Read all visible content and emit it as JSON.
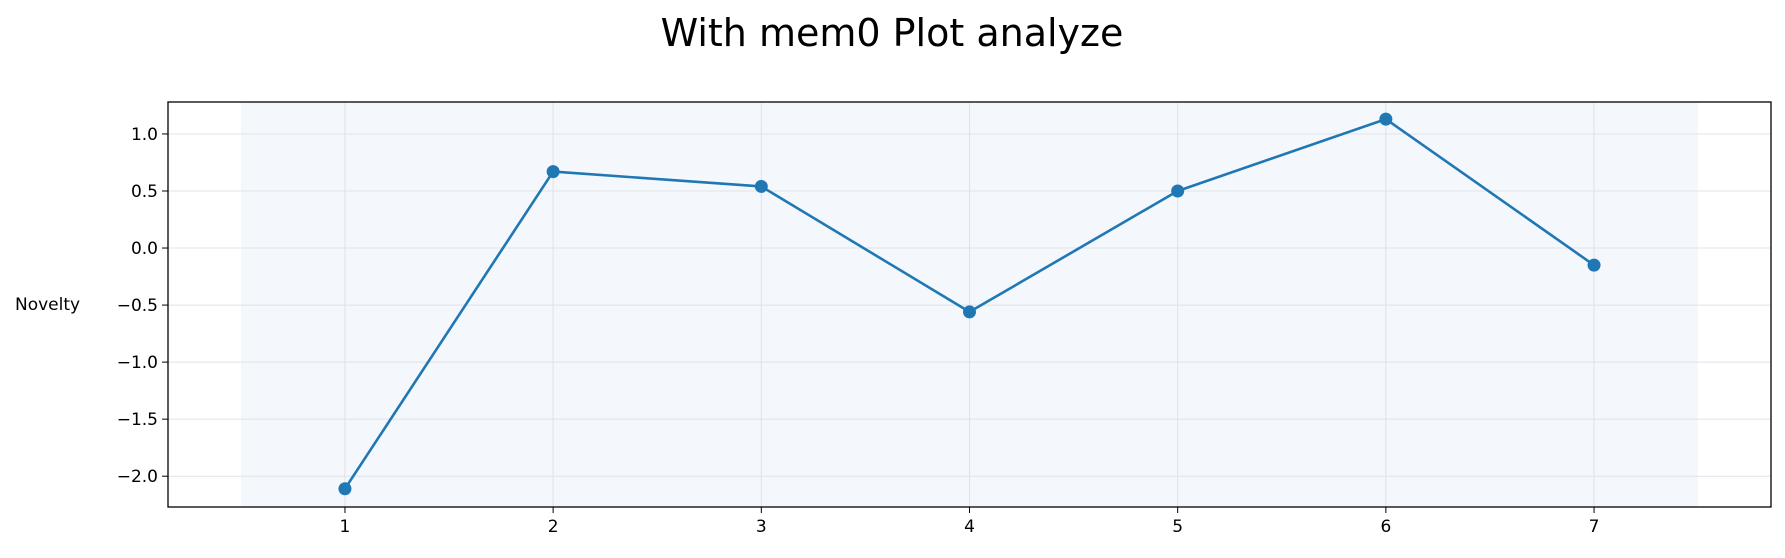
{
  "chart_data": {
    "type": "line",
    "title": "With mem0 Plot analyze",
    "xlabel": "",
    "ylabel": "Novelty",
    "x": [
      1,
      2,
      3,
      4,
      5,
      6,
      7
    ],
    "series": [
      {
        "values": [
          -2.11,
          0.67,
          0.54,
          -0.56,
          0.5,
          1.13,
          -0.15
        ],
        "color": "#1f77b4"
      }
    ],
    "xlim": [
      0.15,
      7.85
    ],
    "ylim": [
      -2.27,
      1.28
    ],
    "xticks": [
      "1",
      "2",
      "3",
      "4",
      "5",
      "6",
      "7"
    ],
    "yticks": [
      "1.0",
      "0.5",
      "0.0",
      "−0.5",
      "−1.0",
      "−1.5",
      "−2.0"
    ],
    "ytick_values": [
      1.0,
      0.5,
      0.0,
      -0.5,
      -1.0,
      -1.5,
      -2.0
    ],
    "shaded_x_range": [
      0.5,
      7.5
    ],
    "shade_color": "#f4f8fc",
    "grid": true
  }
}
